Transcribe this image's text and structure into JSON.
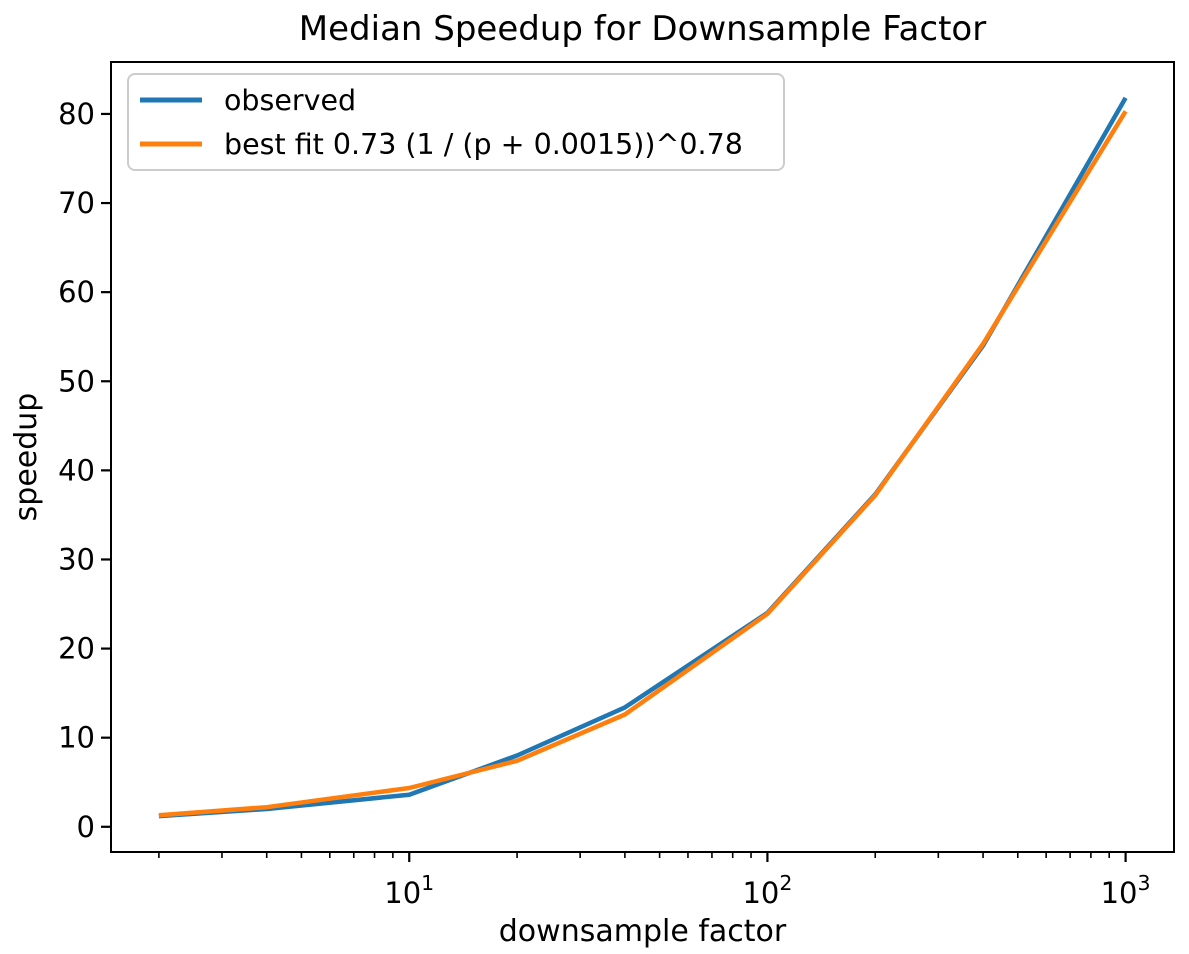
{
  "page": {
    "background": "#ffffff"
  },
  "chart_data": {
    "type": "line",
    "title": "Median Speedup for Downsample Factor",
    "xlabel": "downsample factor",
    "ylabel": "speedup",
    "x_scale": "log",
    "grid": false,
    "legend_position": "upper left",
    "x": [
      2,
      4,
      10,
      20,
      40,
      100,
      200,
      400,
      1000
    ],
    "series": [
      {
        "name": "observed",
        "color": "#1f77b4",
        "values": [
          1.2,
          2.0,
          3.6,
          8.0,
          13.4,
          24.0,
          37.3,
          54.0,
          81.8
        ]
      },
      {
        "name": "best fit 0.73 (1 / (p + 0.0015))^0.78",
        "color": "#ff7f0e",
        "values": [
          1.3,
          2.2,
          4.35,
          7.4,
          12.6,
          23.9,
          37.2,
          54.2,
          80.3
        ]
      }
    ],
    "xlim": [
      1.47,
      1365
    ],
    "ylim": [
      -2.83,
      85.83
    ],
    "x_major_ticks": [
      {
        "value": 10,
        "base": "10",
        "exponent": "1"
      },
      {
        "value": 100,
        "base": "10",
        "exponent": "2"
      },
      {
        "value": 1000,
        "base": "10",
        "exponent": "3"
      }
    ],
    "x_minor_ticks": [
      2,
      3,
      4,
      5,
      6,
      7,
      8,
      9,
      20,
      30,
      40,
      50,
      60,
      70,
      80,
      90,
      200,
      300,
      400,
      500,
      600,
      700,
      800,
      900
    ],
    "y_ticks": [
      0,
      10,
      20,
      30,
      40,
      50,
      60,
      70,
      80
    ],
    "axis_color": "#000000",
    "text_color": "#000000",
    "legend_border_color": "#cccccc",
    "line_width": 4.5
  }
}
